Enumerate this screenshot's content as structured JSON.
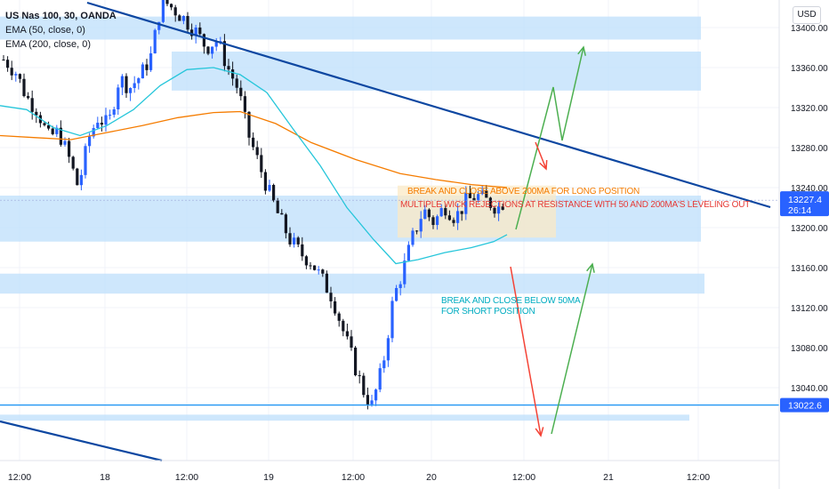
{
  "header": {
    "symbol": "US Nas 100, 30, OANDA",
    "indicators": [
      "EMA (50, close, 0)",
      "EMA (200, close, 0)"
    ],
    "currency_button": "USD"
  },
  "annotations": {
    "long_text": "BREAK AND CLOSE ABOVE 200MA FOR LONG POSITION",
    "wick_text": "MULTIPLE WICK REJECTIONS AT RESISTANCE WITH 50 AND 200MA'S LEVELING OUT",
    "short_line1": "BREAK AND CLOSE BELOW 50MA",
    "short_line2": "FOR SHORT POSITION"
  },
  "colors": {
    "up": "#2962ff",
    "down": "#131722",
    "ema50": "#26c6da",
    "ema200": "#f57c00",
    "zone": "#bbdefb",
    "trendline": "#0d47a1",
    "arrow_up": "#4caf50",
    "arrow_down": "#f44336",
    "orange_text": "#f57c00",
    "red_text": "#e53935",
    "cyan_text": "#00acc1",
    "price_label": "#2962ff",
    "hline": "#2196f3"
  },
  "chart_data": {
    "type": "candlestick",
    "symbol": "US Nas 100",
    "timeframe": "30",
    "y_ticks": [
      13400,
      13360,
      13320,
      13280,
      13240,
      13200,
      13160,
      13120,
      13080,
      13040
    ],
    "x_ticks": [
      "12:00",
      "18",
      "12:00",
      "19",
      "12:00",
      "20",
      "12:00",
      "21",
      "12:00"
    ],
    "ylim": [
      13005,
      13440
    ],
    "last_price": "13227.4",
    "countdown": "26:14",
    "horizontal_line": "13022.6",
    "series": [
      {
        "name": "EMA (50, close, 0)",
        "points": [
          [
            0,
            13322
          ],
          [
            30,
            13318
          ],
          [
            60,
            13300
          ],
          [
            90,
            13292
          ],
          [
            120,
            13302
          ],
          [
            150,
            13318
          ],
          [
            180,
            13342
          ],
          [
            210,
            13358
          ],
          [
            240,
            13360
          ],
          [
            270,
            13353
          ],
          [
            300,
            13335
          ],
          [
            330,
            13298
          ],
          [
            360,
            13262
          ],
          [
            390,
            13220
          ],
          [
            420,
            13188
          ],
          [
            445,
            13164
          ],
          [
            470,
            13168
          ],
          [
            500,
            13175
          ],
          [
            530,
            13180
          ],
          [
            555,
            13186
          ],
          [
            570,
            13193
          ]
        ]
      },
      {
        "name": "EMA (200, close, 0)",
        "points": [
          [
            0,
            13292
          ],
          [
            40,
            13290
          ],
          [
            80,
            13288
          ],
          [
            120,
            13295
          ],
          [
            160,
            13302
          ],
          [
            200,
            13310
          ],
          [
            240,
            13315
          ],
          [
            270,
            13316
          ],
          [
            310,
            13304
          ],
          [
            350,
            13285
          ],
          [
            400,
            13268
          ],
          [
            450,
            13254
          ],
          [
            490,
            13248
          ],
          [
            530,
            13243
          ],
          [
            570,
            13240
          ]
        ]
      }
    ],
    "ohlc_path": [
      [
        5,
        13368
      ],
      [
        18,
        13355
      ],
      [
        30,
        13330
      ],
      [
        42,
        13318
      ],
      [
        54,
        13290
      ],
      [
        66,
        13296
      ],
      [
        78,
        13268
      ],
      [
        88,
        13240
      ],
      [
        100,
        13290
      ],
      [
        110,
        13310
      ],
      [
        122,
        13302
      ],
      [
        134,
        13350
      ],
      [
        146,
        13340
      ],
      [
        158,
        13352
      ],
      [
        170,
        13372
      ],
      [
        182,
        13428
      ],
      [
        196,
        13418
      ],
      [
        208,
        13408
      ],
      [
        220,
        13396
      ],
      [
        232,
        13380
      ],
      [
        244,
        13388
      ],
      [
        256,
        13360
      ],
      [
        268,
        13338
      ],
      [
        278,
        13296
      ],
      [
        290,
        13266
      ],
      [
        302,
        13236
      ],
      [
        314,
        13210
      ],
      [
        326,
        13188
      ],
      [
        338,
        13174
      ],
      [
        350,
        13166
      ],
      [
        362,
        13148
      ],
      [
        374,
        13130
      ],
      [
        386,
        13096
      ],
      [
        398,
        13064
      ],
      [
        408,
        13038
      ],
      [
        418,
        13022
      ],
      [
        430,
        13060
      ],
      [
        442,
        13128
      ],
      [
        454,
        13160
      ],
      [
        464,
        13190
      ],
      [
        476,
        13218
      ],
      [
        488,
        13205
      ],
      [
        500,
        13222
      ],
      [
        512,
        13210
      ],
      [
        524,
        13226
      ],
      [
        536,
        13232
      ],
      [
        548,
        13226
      ],
      [
        560,
        13220
      ],
      [
        568,
        13228
      ]
    ]
  }
}
